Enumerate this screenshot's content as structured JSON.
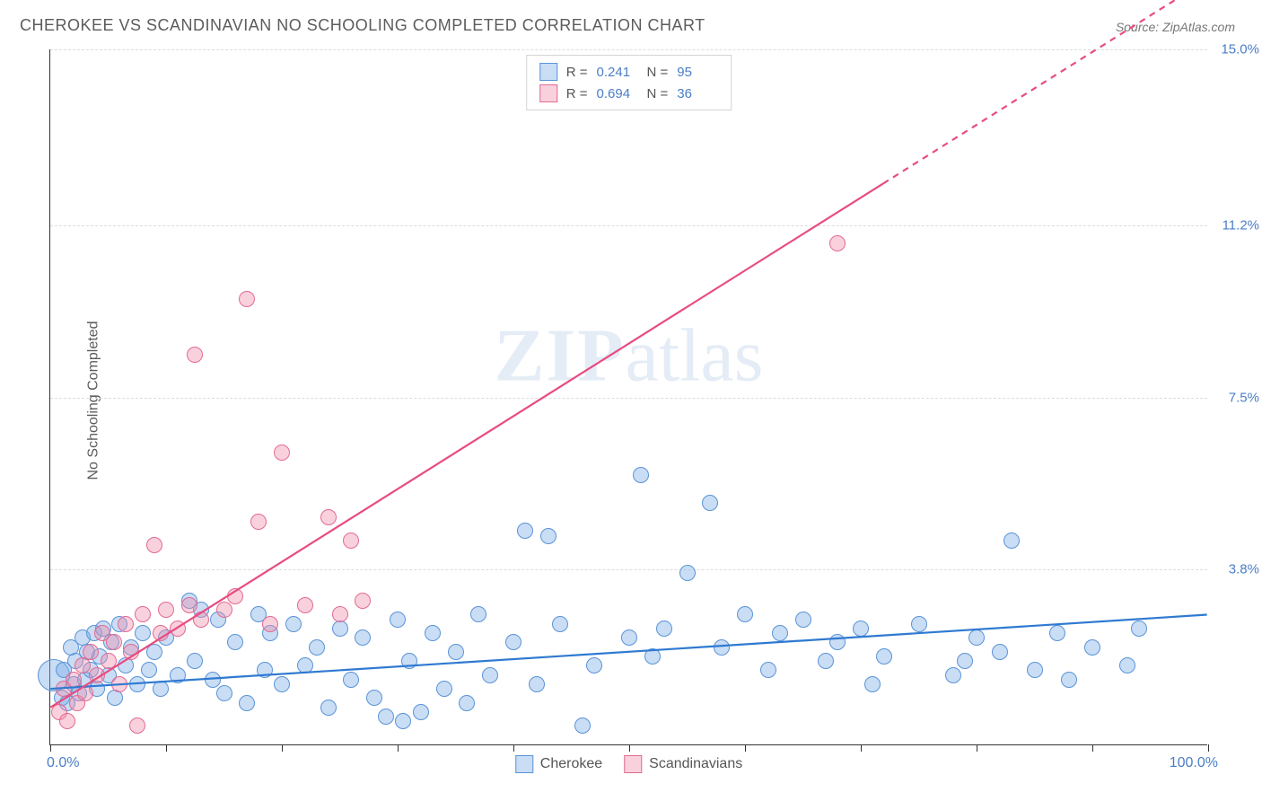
{
  "title": "CHEROKEE VS SCANDINAVIAN NO SCHOOLING COMPLETED CORRELATION CHART",
  "source_label": "Source: ZipAtlas.com",
  "ylabel": "No Schooling Completed",
  "watermark_zip": "ZIP",
  "watermark_atlas": "atlas",
  "chart": {
    "type": "scatter",
    "background_color": "#ffffff",
    "grid_color": "#dcdcdc",
    "axis_color": "#333333",
    "tick_label_color": "#4a7ec7",
    "xlim": [
      0,
      100
    ],
    "ylim": [
      0,
      15
    ],
    "xlim_labels": [
      "0.0%",
      "100.0%"
    ],
    "xticks": [
      0,
      10,
      20,
      30,
      40,
      50,
      60,
      70,
      80,
      90,
      100
    ],
    "ygrid": [
      {
        "v": 3.8,
        "label": "3.8%"
      },
      {
        "v": 7.5,
        "label": "7.5%"
      },
      {
        "v": 11.2,
        "label": "11.2%"
      },
      {
        "v": 15.0,
        "label": "15.0%"
      }
    ],
    "marker_radius": 9,
    "marker_border_width": 1.2,
    "trend_line_width": 2.2,
    "series": [
      {
        "name": "Cherokee",
        "fill": "rgba(120,170,230,0.40)",
        "stroke": "#5a94d6",
        "line_color": "#2f7ad1",
        "R": "0.241",
        "N": "95",
        "trend": {
          "x1": 0,
          "y1": 1.2,
          "x2": 100,
          "y2": 2.8,
          "dashed_from_x": null
        },
        "points": [
          [
            0.3,
            1.5,
            18
          ],
          [
            1,
            1.0
          ],
          [
            1.2,
            1.6
          ],
          [
            1.5,
            0.9
          ],
          [
            1.8,
            2.1
          ],
          [
            2,
            1.3
          ],
          [
            2.2,
            1.8
          ],
          [
            2.5,
            1.1
          ],
          [
            2.8,
            2.3
          ],
          [
            3,
            1.4
          ],
          [
            3.2,
            2.0
          ],
          [
            3.5,
            1.6
          ],
          [
            3.8,
            2.4
          ],
          [
            4,
            1.2
          ],
          [
            4.3,
            1.9
          ],
          [
            4.6,
            2.5
          ],
          [
            5,
            1.5
          ],
          [
            5.3,
            2.2
          ],
          [
            5.6,
            1.0
          ],
          [
            6,
            2.6
          ],
          [
            6.5,
            1.7
          ],
          [
            7,
            2.1
          ],
          [
            7.5,
            1.3
          ],
          [
            8,
            2.4
          ],
          [
            8.5,
            1.6
          ],
          [
            9,
            2.0
          ],
          [
            9.5,
            1.2
          ],
          [
            10,
            2.3
          ],
          [
            11,
            1.5
          ],
          [
            12,
            3.1
          ],
          [
            12.5,
            1.8
          ],
          [
            13,
            2.9
          ],
          [
            14,
            1.4
          ],
          [
            14.5,
            2.7
          ],
          [
            15,
            1.1
          ],
          [
            16,
            2.2
          ],
          [
            17,
            0.9
          ],
          [
            18,
            2.8
          ],
          [
            18.5,
            1.6
          ],
          [
            19,
            2.4
          ],
          [
            20,
            1.3
          ],
          [
            21,
            2.6
          ],
          [
            22,
            1.7
          ],
          [
            23,
            2.1
          ],
          [
            24,
            0.8
          ],
          [
            25,
            2.5
          ],
          [
            26,
            1.4
          ],
          [
            27,
            2.3
          ],
          [
            28,
            1.0
          ],
          [
            29,
            0.6
          ],
          [
            30,
            2.7
          ],
          [
            30.5,
            0.5
          ],
          [
            31,
            1.8
          ],
          [
            32,
            0.7
          ],
          [
            33,
            2.4
          ],
          [
            34,
            1.2
          ],
          [
            35,
            2.0
          ],
          [
            36,
            0.9
          ],
          [
            37,
            2.8
          ],
          [
            38,
            1.5
          ],
          [
            40,
            2.2
          ],
          [
            41,
            4.6
          ],
          [
            42,
            1.3
          ],
          [
            43,
            4.5
          ],
          [
            44,
            2.6
          ],
          [
            46,
            0.4
          ],
          [
            47,
            1.7
          ],
          [
            50,
            2.3
          ],
          [
            51,
            5.8
          ],
          [
            52,
            1.9
          ],
          [
            53,
            2.5
          ],
          [
            55,
            3.7
          ],
          [
            57,
            5.2
          ],
          [
            58,
            2.1
          ],
          [
            60,
            2.8
          ],
          [
            62,
            1.6
          ],
          [
            63,
            2.4
          ],
          [
            65,
            2.7
          ],
          [
            67,
            1.8
          ],
          [
            68,
            2.2
          ],
          [
            70,
            2.5
          ],
          [
            71,
            1.3
          ],
          [
            72,
            1.9
          ],
          [
            75,
            2.6
          ],
          [
            78,
            1.5
          ],
          [
            79,
            1.8
          ],
          [
            80,
            2.3
          ],
          [
            82,
            2.0
          ],
          [
            83,
            4.4
          ],
          [
            85,
            1.6
          ],
          [
            87,
            2.4
          ],
          [
            88,
            1.4
          ],
          [
            90,
            2.1
          ],
          [
            93,
            1.7
          ],
          [
            94,
            2.5
          ]
        ]
      },
      {
        "name": "Scandinavians",
        "fill": "rgba(240,140,170,0.40)",
        "stroke": "#e26a93",
        "line_color": "#e84c81",
        "R": "0.694",
        "N": "36",
        "trend": {
          "x1": 0,
          "y1": 0.8,
          "x2": 100,
          "y2": 16.5,
          "dashed_from_x": 72
        },
        "points": [
          [
            0.8,
            0.7
          ],
          [
            1.2,
            1.2
          ],
          [
            1.5,
            0.5
          ],
          [
            2,
            1.4
          ],
          [
            2.3,
            0.9
          ],
          [
            2.8,
            1.7
          ],
          [
            3,
            1.1
          ],
          [
            3.5,
            2.0
          ],
          [
            4,
            1.5
          ],
          [
            4.5,
            2.4
          ],
          [
            5,
            1.8
          ],
          [
            5.5,
            2.2
          ],
          [
            6,
            1.3
          ],
          [
            6.5,
            2.6
          ],
          [
            7,
            2.0
          ],
          [
            7.5,
            0.4
          ],
          [
            8,
            2.8
          ],
          [
            9,
            4.3
          ],
          [
            9.5,
            2.4
          ],
          [
            10,
            2.9
          ],
          [
            11,
            2.5
          ],
          [
            12,
            3.0
          ],
          [
            12.5,
            8.4
          ],
          [
            13,
            2.7
          ],
          [
            15,
            2.9
          ],
          [
            16,
            3.2
          ],
          [
            17,
            9.6
          ],
          [
            18,
            4.8
          ],
          [
            19,
            2.6
          ],
          [
            20,
            6.3
          ],
          [
            22,
            3.0
          ],
          [
            24,
            4.9
          ],
          [
            25,
            2.8
          ],
          [
            26,
            4.4
          ],
          [
            27,
            3.1
          ],
          [
            68,
            10.8
          ]
        ]
      }
    ]
  },
  "legend_top_labels": {
    "R_prefix": "R  =",
    "N_prefix": "N  ="
  },
  "legend_bottom": [
    "Cherokee",
    "Scandinavians"
  ]
}
